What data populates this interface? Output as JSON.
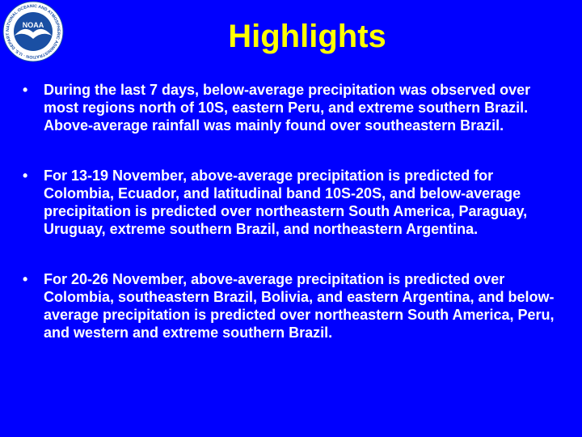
{
  "logo": {
    "icon": "noaa-logo",
    "text": "NOAA",
    "ring_text": "NATIONAL OCEANIC AND ATMOSPHERIC ADMINISTRATION · U.S. DEPARTMENT OF COMMERCE",
    "colors": {
      "ring": "#ffffff",
      "inner": "#1a4fa3",
      "bird": "#ffffff"
    }
  },
  "title": "Highlights",
  "bullet_glyph": "•",
  "bullets": [
    "During the last 7 days, below-average precipitation was observed over most regions north of 10S, eastern Peru, and extreme southern Brazil. Above-average rainfall was mainly found over southeastern Brazil.",
    "For 13-19 November, above-average precipitation is predicted for Colombia, Ecuador, and latitudinal band 10S-20S, and below-average precipitation is predicted over northeastern South America, Paraguay, Uruguay, extreme southern Brazil, and northeastern Argentina.",
    "For 20-26 November, above-average precipitation is predicted over Colombia, southeastern Brazil, Bolivia, and eastern Argentina, and below-average precipitation is predicted over northeastern South America, Peru, and western and extreme southern Brazil."
  ],
  "colors": {
    "background": "#0000ff",
    "title": "#ffff00",
    "text": "#ffffff"
  }
}
